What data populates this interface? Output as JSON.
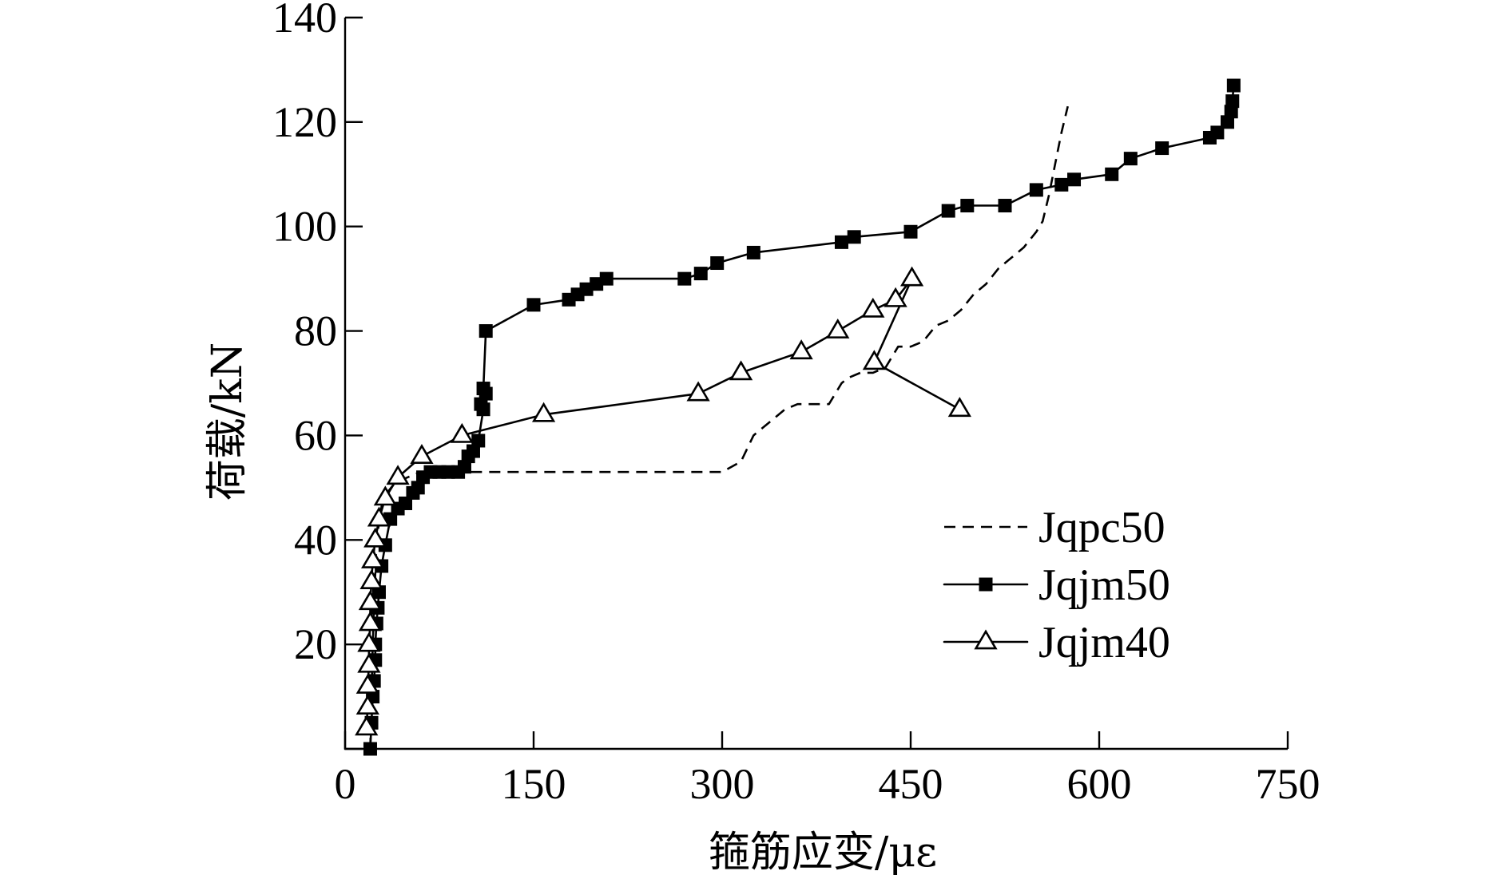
{
  "chart_data": {
    "type": "line",
    "title": "",
    "xlabel": "箍筋应变/με",
    "ylabel": "荷载/kN",
    "xlim": [
      0,
      750
    ],
    "ylim": [
      0,
      140
    ],
    "x_ticks": [
      "0",
      "150",
      "300",
      "450",
      "600",
      "750"
    ],
    "y_ticks": [
      "",
      "20",
      "40",
      "60",
      "80",
      "100",
      "120",
      "140"
    ],
    "grid": false,
    "legend_position": "bottom-right",
    "series": [
      {
        "name": "Jqpc50",
        "style": "dashed",
        "marker": "none",
        "x": [
          20,
          22,
          25,
          30,
          40,
          60,
          80,
          100,
          150,
          200,
          250,
          300,
          315,
          325,
          340,
          350,
          360,
          370,
          385,
          395,
          400,
          410,
          420,
          430,
          440,
          450,
          460,
          470,
          480,
          490,
          500,
          510,
          520,
          530,
          540,
          550,
          555,
          560,
          565,
          570,
          575
        ],
        "y": [
          0,
          20,
          40,
          48,
          51,
          53,
          53,
          53,
          53,
          53,
          53,
          53,
          55,
          60,
          63,
          65,
          66,
          66,
          66,
          70,
          71,
          72,
          72,
          73,
          77,
          77,
          78,
          81,
          82,
          84,
          87,
          89,
          92,
          94,
          96,
          99,
          101,
          106,
          112,
          118,
          123
        ]
      },
      {
        "name": "Jqjm50",
        "style": "solid",
        "marker": "square",
        "x": [
          20,
          21,
          22,
          23,
          24,
          24,
          25,
          26,
          27,
          29,
          32,
          36,
          42,
          48,
          54,
          58,
          62,
          68,
          75,
          82,
          90,
          95,
          98,
          102,
          106,
          110,
          108,
          112,
          110,
          112,
          150,
          178,
          185,
          192,
          200,
          208,
          270,
          283,
          296,
          325,
          395,
          405,
          450,
          480,
          495,
          525,
          550,
          570,
          580,
          610,
          625,
          650,
          688,
          694,
          702,
          705,
          706,
          707
        ],
        "y": [
          0,
          5,
          10,
          13,
          17,
          20,
          24,
          27,
          30,
          35,
          39,
          44,
          46,
          47,
          49,
          50,
          52,
          53,
          53,
          53,
          53,
          54,
          56,
          57,
          59,
          65,
          66,
          68,
          69,
          80,
          85,
          86,
          87,
          88,
          89,
          90,
          90,
          91,
          93,
          95,
          97,
          98,
          99,
          103,
          104,
          104,
          107,
          108,
          109,
          110,
          113,
          115,
          117,
          118,
          120,
          122,
          124,
          127
        ]
      },
      {
        "name": "Jqjm40",
        "style": "solid",
        "marker": "triangle",
        "x": [
          17,
          18,
          18,
          19,
          19,
          20,
          20,
          21,
          22,
          24,
          27,
          32,
          42,
          61,
          93,
          158,
          281,
          315,
          363,
          392,
          420,
          438,
          451,
          421,
          489
        ],
        "y": [
          4,
          8,
          12,
          16,
          20,
          24,
          28,
          32,
          36,
          40,
          44,
          48,
          52,
          56,
          60,
          64,
          68,
          72,
          76,
          80,
          84,
          86,
          90,
          74,
          65
        ]
      }
    ]
  }
}
